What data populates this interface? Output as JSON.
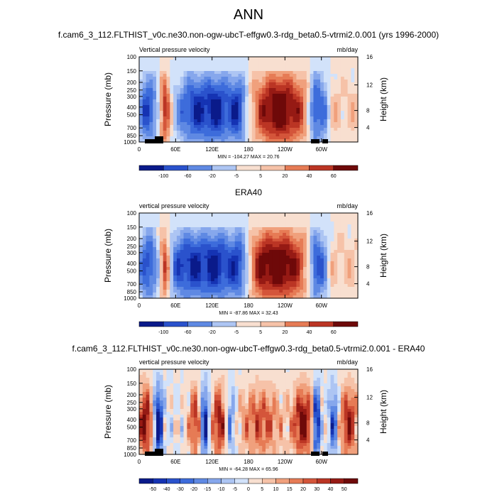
{
  "title": "ANN",
  "colors": {
    "rdbu": [
      "#0a1a8a",
      "#1533b3",
      "#2a52cc",
      "#3d6cdb",
      "#5f89e3",
      "#86a7ec",
      "#adc5f3",
      "#d2e2fa",
      "#f8dfd0",
      "#f6c2a8",
      "#f0a07c",
      "#e67b55",
      "#d4553a",
      "#bb3524",
      "#961a14",
      "#6e0909"
    ]
  },
  "chart_data": [
    {
      "type": "heatmap",
      "panel_title": "f.cam6_3_112.FLTHIST_v0c.ne30.non-ogw-ubcT-effgw0.3-rdg_beta0.5-vtrmi2.0.001 (yrs 1996-2000)",
      "left_label": "Vertical pressure velocity",
      "right_label": "mb/day",
      "ylabel": "Pressure (mb)",
      "ylabel_right": "Height (km)",
      "y_ticks": [
        "100",
        "150",
        "200",
        "250",
        "300",
        "400",
        "500",
        "700",
        "850",
        "1000"
      ],
      "y_right_ticks": [
        "16",
        "12",
        "8",
        "4"
      ],
      "x_ticks": [
        "0",
        "60E",
        "120E",
        "180",
        "120W",
        "60W"
      ],
      "minmax": "MIN = -104.27  MAX =  20.76",
      "colorbar_labels": [
        "-100",
        "-60",
        "-20",
        "-5",
        "5",
        "20",
        "40",
        "60"
      ],
      "min": -104.27,
      "max": 20.76
    },
    {
      "type": "heatmap",
      "panel_title": "ERA40",
      "left_label": "vertical pressure velocity",
      "right_label": "mb/day",
      "ylabel": "Pressure (mb)",
      "ylabel_right": "Height (km)",
      "y_ticks": [
        "100",
        "150",
        "200",
        "250",
        "300",
        "400",
        "500",
        "700",
        "850",
        "1000"
      ],
      "y_right_ticks": [
        "16",
        "12",
        "8",
        "4"
      ],
      "x_ticks": [
        "0",
        "60E",
        "120E",
        "180",
        "120W",
        "60W"
      ],
      "minmax": "MIN = -87.86  MAX =  32.43",
      "colorbar_labels": [
        "-100",
        "-60",
        "-20",
        "-5",
        "5",
        "20",
        "40",
        "60"
      ],
      "min": -87.86,
      "max": 32.43
    },
    {
      "type": "heatmap",
      "panel_title": "f.cam6_3_112.FLTHIST_v0c.ne30.non-ogw-ubcT-effgw0.3-rdg_beta0.5-vtrmi2.0.001 - ERA40",
      "left_label": "vertical pressure velocity",
      "right_label": "mb/day",
      "ylabel": "Pressure (mb)",
      "ylabel_right": "Height (km)",
      "y_ticks": [
        "100",
        "150",
        "200",
        "250",
        "300",
        "400",
        "500",
        "700",
        "850",
        "1000"
      ],
      "y_right_ticks": [
        "16",
        "12",
        "8",
        "4"
      ],
      "x_ticks": [
        "0",
        "60E",
        "120E",
        "180",
        "120W",
        "60W"
      ],
      "minmax": "MIN = -64.28  MAX =  65.96",
      "colorbar_labels": [
        "-50",
        "-40",
        "-30",
        "-20",
        "-15",
        "-10",
        "-5",
        "0",
        "5",
        "10",
        "15",
        "20",
        "30",
        "40",
        "50"
      ],
      "min": -64.28,
      "max": 65.96
    }
  ]
}
